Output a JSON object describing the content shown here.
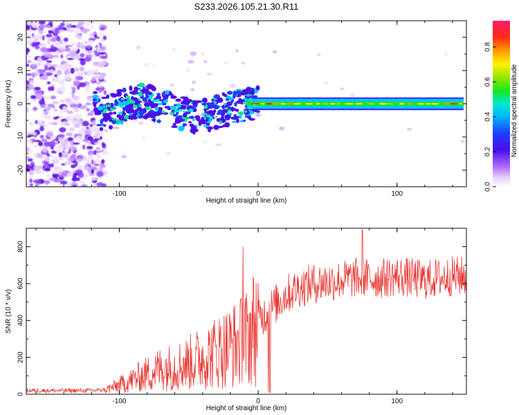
{
  "title": "S233.2026.105.21.30.R11",
  "chart_data": [
    {
      "type": "heatmap",
      "xlabel": "Height of straight line (km)",
      "ylabel": "Frequency (Hz)",
      "xlim": [
        -167,
        150
      ],
      "ylim": [
        -25,
        25
      ],
      "xticks": [
        -100,
        0,
        100
      ],
      "yticks": [
        20,
        10,
        0,
        -10,
        -20
      ],
      "description_series": [
        {
          "name": "noise_region",
          "x_range": [
            -167,
            -110
          ],
          "y_range": [
            -25,
            25
          ]
        },
        {
          "name": "signal_trace",
          "points": [
            [
              -115,
              -3
            ],
            [
              -105,
              -2
            ],
            [
              -95,
              0
            ],
            [
              -85,
              1
            ],
            [
              -75,
              0
            ],
            [
              -65,
              -1
            ],
            [
              -55,
              -3
            ],
            [
              -45,
              -4
            ],
            [
              -35,
              -3
            ],
            [
              -25,
              -2
            ],
            [
              -15,
              -1
            ],
            [
              -5,
              0
            ],
            [
              0,
              0
            ],
            [
              50,
              0
            ],
            [
              100,
              0
            ],
            [
              148,
              0
            ]
          ]
        }
      ],
      "colorbar": {
        "label": "Normalized spectral amplitude",
        "ticks": [
          "0.0",
          "0.2",
          "0.4",
          "0.6",
          "0.8"
        ],
        "range": [
          0,
          0.95
        ]
      }
    },
    {
      "type": "line",
      "xlabel": "Height of straight line (km)",
      "ylabel": "SNR (10 * v/v)",
      "xlim": [
        -167,
        150
      ],
      "ylim": [
        0,
        900
      ],
      "xticks": [
        -100,
        0,
        100
      ],
      "yticks": [
        0,
        200,
        400,
        600,
        800
      ],
      "color": "#e8322d",
      "series": [
        {
          "name": "SNR",
          "x": [
            -167,
            -120,
            -110,
            -100,
            -90,
            -80,
            -70,
            -60,
            -50,
            -40,
            -30,
            -20,
            -10,
            -5,
            0,
            10,
            20,
            30,
            40,
            50,
            60,
            70,
            80,
            90,
            100,
            110,
            120,
            130,
            140,
            150
          ],
          "values": [
            20,
            20,
            25,
            50,
            80,
            110,
            140,
            150,
            170,
            200,
            230,
            260,
            290,
            340,
            400,
            470,
            540,
            580,
            600,
            610,
            620,
            630,
            625,
            630,
            640,
            630,
            620,
            630,
            640,
            640
          ]
        }
      ]
    }
  ]
}
